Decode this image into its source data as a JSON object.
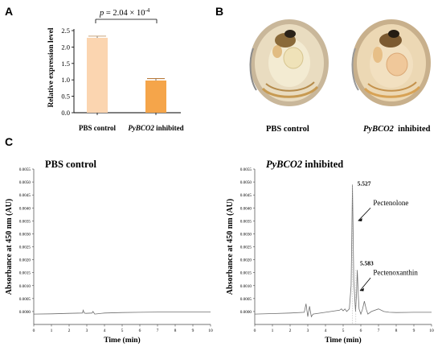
{
  "panels": {
    "a": "A",
    "b": "B",
    "c": "C"
  },
  "panel_a": {
    "ylabel": "Relative expression level",
    "pvalue": "p = 2.04 × 10",
    "pvalue_exp": "-4",
    "label_pbs": "PBS control",
    "label_gene": "PyBCO2",
    "label_inhibited": "inhibited"
  },
  "panel_b": {
    "label_pbs": "PBS control",
    "label_gene": "PyBCO2",
    "label_inhibited": "inhibited"
  },
  "panel_c": {
    "left_title": "PBS control",
    "right_title_gene": "PyBCO2",
    "right_title_rest": "inhibited",
    "ylabel": "Absorbance at 450 nm (AU)",
    "xlabel": "Time (min)",
    "peak1_time": "5.527",
    "peak1_name": "Pectenolone",
    "peak2_time": "5.583",
    "peak2_name": "Pectenoxanthin"
  },
  "chart_data": [
    {
      "type": "bar",
      "categories": [
        "PBS control",
        "PyBCO2 inhibited"
      ],
      "values": [
        2.28,
        0.98
      ],
      "errors": [
        0.05,
        0.06
      ],
      "ylabel": "Relative expression level",
      "ylim": [
        0,
        2.5
      ],
      "yticks": [
        "0.0",
        "0.5",
        "1.0",
        "1.5",
        "2.0",
        "2.5"
      ],
      "colors": [
        "#fbd5b0",
        "#f5a54a"
      ],
      "annotation": "p = 2.04 × 10-4"
    },
    {
      "type": "line",
      "title": "PBS control",
      "xlabel": "Time (min)",
      "ylabel": "Absorbance at 450 nm (AU)",
      "xlim": [
        0,
        10
      ],
      "ylim": [
        -0.0005,
        0.0055
      ],
      "xticks": [
        "0",
        "1",
        "2",
        "3",
        "4",
        "5",
        "6",
        "7",
        "8",
        "9",
        "10"
      ],
      "yticks": [
        "0.0000",
        "0.0005",
        "0.0010",
        "0.0015",
        "0.0020",
        "0.0025",
        "0.0030",
        "0.0035",
        "0.0040",
        "0.0045",
        "0.0050",
        "0.0055"
      ],
      "x": [
        0,
        1,
        2,
        2.75,
        2.8,
        2.85,
        2.95,
        3.3,
        3.35,
        3.45,
        4,
        5,
        6,
        7,
        8,
        9,
        10
      ],
      "y": [
        -0.0001,
        -9e-05,
        -7e-05,
        -6e-05,
        5e-05,
        -6e-05,
        -7e-05,
        -6e-05,
        0.0,
        -0.0001,
        -6e-05,
        -4e-05,
        -3e-05,
        -2e-05,
        -2e-05,
        -2e-05,
        -2e-05
      ]
    },
    {
      "type": "line",
      "title": "PyBCO2 inhibited",
      "xlabel": "Time (min)",
      "ylabel": "Absorbance at 450 nm (AU)",
      "xlim": [
        0,
        10
      ],
      "ylim": [
        -0.0005,
        0.0055
      ],
      "xticks": [
        "0",
        "1",
        "2",
        "3",
        "4",
        "5",
        "6",
        "7",
        "8",
        "9",
        "10"
      ],
      "yticks": [
        "0.0000",
        "0.0005",
        "0.0010",
        "0.0015",
        "0.0020",
        "0.0025",
        "0.0030",
        "0.0035",
        "0.0040",
        "0.0045",
        "0.0050",
        "0.0055"
      ],
      "x": [
        0,
        1,
        2,
        2.8,
        2.9,
        3.0,
        3.1,
        3.2,
        3.3,
        4,
        4.8,
        4.9,
        5.0,
        5.1,
        5.2,
        5.35,
        5.45,
        5.527,
        5.6,
        5.7,
        5.75,
        5.8,
        5.85,
        5.9,
        6.0,
        6.1,
        6.2,
        6.3,
        6.4,
        6.6,
        7.0,
        7.3,
        7.6,
        8,
        9,
        10
      ],
      "y": [
        -0.0001,
        -8e-05,
        -6e-05,
        -3e-05,
        0.0003,
        -0.0002,
        0.0002,
        -0.0002,
        -0.0001,
        -3e-05,
        5e-05,
        0.0001,
        3e-05,
        0.0001,
        0.0,
        0.0001,
        0.001,
        0.0049,
        0.0012,
        0.0,
        0.0006,
        0.0016,
        0.0007,
        0.0001,
        -0.0001,
        0.0001,
        0.0004,
        0.0001,
        -0.0001,
        0.0,
        0.0001,
        0.0,
        -3e-05,
        -4e-05,
        -3e-05,
        -3e-05
      ]
    }
  ]
}
